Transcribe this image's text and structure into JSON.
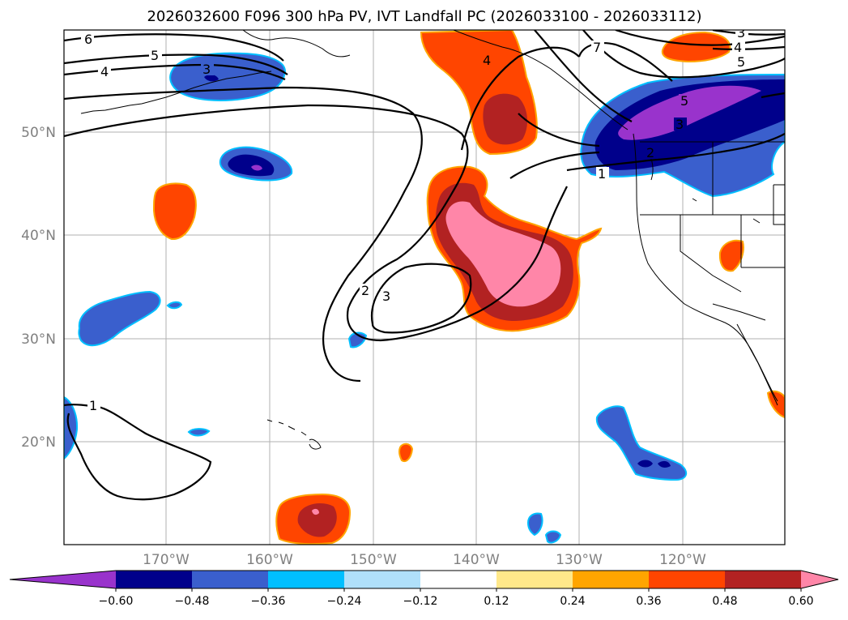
{
  "title": "2026032600 F096 300 hPa PV, IVT Landfall PC (2026033100 - 2026033112)",
  "map": {
    "lat_labels": [
      "50°N",
      "40°N",
      "30°N",
      "20°N"
    ],
    "lon_labels": [
      "170°W",
      "160°W",
      "150°W",
      "140°W",
      "130°W",
      "120°W"
    ]
  },
  "colorbar": {
    "ticks": [
      "−0.60",
      "−0.48",
      "−0.36",
      "−0.24",
      "−0.12",
      "0.12",
      "0.24",
      "0.36",
      "0.48",
      "0.60"
    ],
    "colors": [
      "#9933cc",
      "#00008b",
      "#3a5fcd",
      "#00bfff",
      "#b0e0fa",
      "#ffffff",
      "#ffe88a",
      "#ffa500",
      "#ff4500",
      "#b22222",
      "#ff86a8"
    ]
  },
  "contour_labels": [
    "6",
    "5",
    "4",
    "3",
    "4",
    "7",
    "5",
    "3",
    "5",
    "4",
    "3",
    "2",
    "1",
    "2",
    "3",
    "1"
  ],
  "colors": {
    "purple": "#9933cc",
    "navy": "#00008b",
    "royal": "#3a5fcd",
    "sky": "#00bfff",
    "orangered": "#ff4500",
    "firebrick": "#b22222",
    "pink": "#ff86a8",
    "yellow": "#ffe88a"
  }
}
